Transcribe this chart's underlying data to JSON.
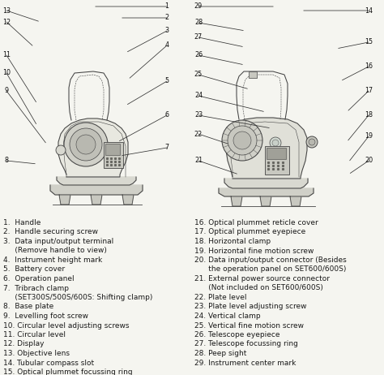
{
  "background_color": "#f5f5f0",
  "text_color": "#1a1a1a",
  "font_size_labels": 6.5,
  "font_size_nums": 6.0,
  "left_legend": [
    "1.  Handle",
    "2.  Handle securing screw",
    "3.  Data input/output terminal",
    "     (Remove handle to view)",
    "4.  Instrument height mark",
    "5.  Battery cover",
    "6.  Operation panel",
    "7.  Tribrach clamp",
    "     (SET300S/500S/600S: Shifting clamp)",
    "8.  Base plate",
    "9.  Levelling foot screw",
    "10. Circular level adjusting screws",
    "11. Circular level",
    "12. Display",
    "13. Objective lens",
    "14. Tubular compass slot",
    "15. Optical plummet focussing ring"
  ],
  "right_legend": [
    "16. Optical plummet reticle cover",
    "17. Optical plummet eyepiece",
    "18. Horizontal clamp",
    "19. Horizontal fine motion screw",
    "20. Data input/output connector (Besides",
    "      the operation panel on SET600/600S)",
    "21. External power source connector",
    "      (Not included on SET600/600S)",
    "22. Plate level",
    "23. Plate level adjusting screw",
    "24. Vertical clamp",
    "25. Vertical fine motion screw",
    "26. Telescope eyepiece",
    "27. Telescope focussing ring",
    "28. Peep sight",
    "29. Instrument center mark"
  ],
  "left_callouts": [
    [
      13,
      8,
      13,
      50,
      27
    ],
    [
      12,
      8,
      27,
      42,
      58
    ],
    [
      1,
      206,
      8,
      115,
      8
    ],
    [
      2,
      206,
      22,
      148,
      22
    ],
    [
      3,
      206,
      38,
      155,
      65
    ],
    [
      4,
      206,
      56,
      158,
      98
    ],
    [
      5,
      206,
      100,
      155,
      130
    ],
    [
      11,
      8,
      68,
      46,
      128
    ],
    [
      10,
      8,
      90,
      46,
      155
    ],
    [
      9,
      8,
      112,
      58,
      178
    ],
    [
      6,
      206,
      142,
      145,
      175
    ],
    [
      8,
      8,
      198,
      46,
      202
    ],
    [
      7,
      206,
      182,
      148,
      192
    ]
  ],
  "right_callouts": [
    [
      29,
      245,
      8,
      340,
      8
    ],
    [
      14,
      455,
      13,
      372,
      13
    ],
    [
      28,
      245,
      28,
      303,
      38
    ],
    [
      27,
      245,
      46,
      302,
      58
    ],
    [
      26,
      245,
      68,
      302,
      80
    ],
    [
      15,
      455,
      52,
      415,
      60
    ],
    [
      25,
      245,
      92,
      308,
      110
    ],
    [
      16,
      455,
      82,
      420,
      100
    ],
    [
      24,
      245,
      118,
      328,
      138
    ],
    [
      17,
      455,
      112,
      428,
      138
    ],
    [
      23,
      245,
      142,
      335,
      158
    ],
    [
      18,
      455,
      142,
      428,
      175
    ],
    [
      22,
      245,
      165,
      305,
      185
    ],
    [
      19,
      455,
      168,
      430,
      200
    ],
    [
      21,
      245,
      198,
      295,
      215
    ],
    [
      20,
      455,
      198,
      430,
      215
    ]
  ]
}
